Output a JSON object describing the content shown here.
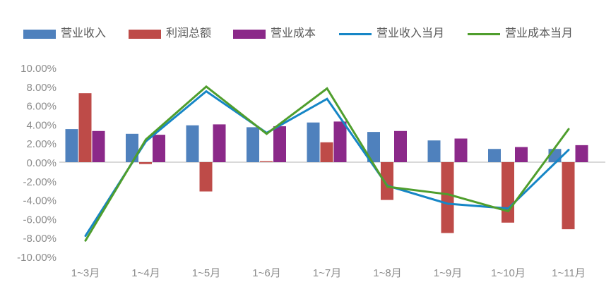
{
  "legend": {
    "items": [
      {
        "label": "营业收入",
        "color": "#4F81BD",
        "type": "bar"
      },
      {
        "label": "利润总额",
        "color": "#BE4B48",
        "type": "bar"
      },
      {
        "label": "营业成本",
        "color": "#8B2989",
        "type": "bar"
      },
      {
        "label": "营业收入当月",
        "color": "#1686C6",
        "type": "line"
      },
      {
        "label": "营业成本当月",
        "color": "#4F9E2D",
        "type": "line"
      }
    ]
  },
  "chart_data": {
    "type": "combo-bar-line",
    "title": "",
    "categories": [
      "1~3月",
      "1~4月",
      "1~5月",
      "1~6月",
      "1~7月",
      "1~8月",
      "1~9月",
      "1~10月",
      "1~11月"
    ],
    "bar_series": [
      {
        "name": "营业收入",
        "color": "#4F81BD",
        "values": [
          3.5,
          3.0,
          3.9,
          3.7,
          4.2,
          3.2,
          2.3,
          1.4,
          1.4
        ]
      },
      {
        "name": "利润总额",
        "color": "#BE4B48",
        "values": [
          7.3,
          -0.2,
          -3.1,
          0.1,
          2.1,
          -4.0,
          -7.5,
          -6.4,
          -7.1
        ]
      },
      {
        "name": "营业成本",
        "color": "#8B2989",
        "values": [
          3.3,
          2.9,
          4.0,
          3.8,
          4.3,
          3.3,
          2.5,
          1.6,
          1.8
        ]
      }
    ],
    "line_series": [
      {
        "name": "营业收入当月",
        "color": "#1686C6",
        "values": [
          -7.8,
          2.2,
          7.5,
          3.1,
          6.7,
          -2.5,
          -4.4,
          -4.9,
          1.3
        ]
      },
      {
        "name": "营业成本当月",
        "color": "#4F9E2D",
        "values": [
          -8.3,
          2.4,
          8.0,
          3.0,
          7.8,
          -2.6,
          -3.4,
          -5.2,
          3.5
        ]
      }
    ],
    "y_axis": {
      "min": -10,
      "max": 10,
      "step": 2,
      "tick_labels": [
        "10.00%",
        "8.00%",
        "6.00%",
        "4.00%",
        "2.00%",
        "0.00%",
        "-2.00%",
        "-4.00%",
        "-6.00%",
        "-8.00%",
        "-10.00%"
      ]
    },
    "grid": false,
    "legend_position": "top"
  },
  "colors": {
    "axis_text": "#8C8C8C",
    "legend_text": "#595959",
    "zero_line": "#D9D9D9",
    "background": "#FFFFFF"
  }
}
